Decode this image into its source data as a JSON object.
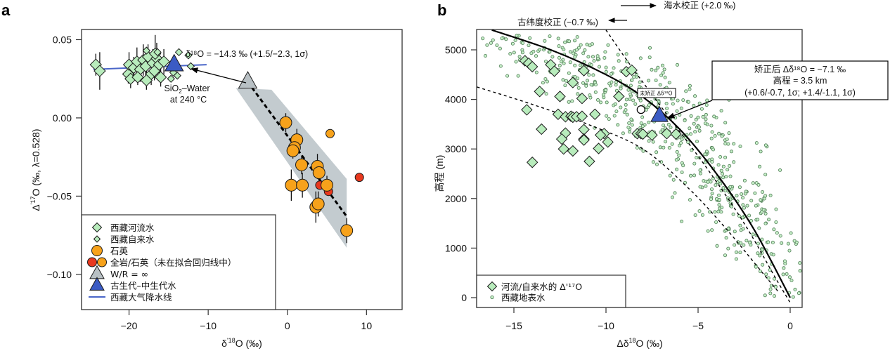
{
  "chart_data": [
    {
      "panel": "a",
      "type": "scatter",
      "xlabel": "δ'¹⁸O (‰)",
      "ylabel": "Δ'¹⁷O (‰, λ=0.528)",
      "xlim": [
        -26,
        14.5
      ],
      "ylim": [
        -0.1225,
        0.0565
      ],
      "xticks": [
        -20,
        -10,
        0,
        10
      ],
      "xtick_labels": [
        "−20",
        "−10",
        "0",
        "10"
      ],
      "yticks": [
        0.05,
        0.0,
        -0.05,
        -0.1
      ],
      "ytick_labels": [
        "0.05",
        "0.00",
        "−0.05",
        "−0.10"
      ],
      "grid": false,
      "legend_position": "bottom-left",
      "annotations": {
        "mean_label": "δ¹⁸O = −14.3 ‰ (+1.5/−2.3, 1σ)",
        "arrow_label_line1": "SiO₂–Water",
        "arrow_label_line2": "at 240 °C"
      },
      "legend": [
        {
          "label": "西藏河流水",
          "marker": "diamond-large",
          "color": "#b8ecbc"
        },
        {
          "label": "西藏自来水",
          "marker": "diamond-small",
          "color": "#b8ecbc"
        },
        {
          "label": "石英",
          "marker": "circle",
          "color": "#f7a21b"
        },
        {
          "label": "全岩/石英（未在拟合回归线中）",
          "marker": "circle-pair",
          "color": "#e8381e"
        },
        {
          "label": "W/R = ∞",
          "marker": "triangle",
          "color": "#b8c0c4"
        },
        {
          "label": "古生代–中生代水",
          "marker": "triangle",
          "color": "#3b5bc4"
        },
        {
          "label": "西藏大气降水线",
          "marker": "line",
          "color": "#4a66c8"
        }
      ],
      "series": [
        {
          "name": "西藏河流水",
          "points": [
            [
              -24.2,
              0.034,
              0.007
            ],
            [
              -23.7,
              0.03,
              0.012
            ],
            [
              -20.1,
              0.028,
              0.006
            ],
            [
              -20.0,
              0.034,
              0.008
            ],
            [
              -19.8,
              0.025,
              0.006
            ],
            [
              -19.4,
              0.032,
              0.007
            ],
            [
              -19.0,
              0.036,
              0.009
            ],
            [
              -18.6,
              0.031,
              0.008
            ],
            [
              -18.2,
              0.037,
              0.01
            ],
            [
              -17.9,
              0.033,
              0.006
            ],
            [
              -17.6,
              0.039,
              0.008
            ],
            [
              -17.2,
              0.028,
              0.007
            ],
            [
              -17.0,
              0.035,
              0.009
            ],
            [
              -16.8,
              0.03,
              0.006
            ],
            [
              -16.5,
              0.038,
              0.01
            ],
            [
              -16.2,
              0.034,
              0.007
            ],
            [
              -16.0,
              0.026,
              0.006
            ],
            [
              -15.6,
              0.036,
              0.008
            ],
            [
              -18.9,
              0.026,
              0.005
            ],
            [
              -17.8,
              0.024,
              0.006
            ],
            [
              -16.7,
              0.041,
              0.012
            ]
          ]
        },
        {
          "name": "西藏自来水",
          "points": [
            [
              -17.8,
              0.043
            ],
            [
              -16.4,
              0.042
            ],
            [
              -13.7,
              0.042
            ],
            [
              -12.5,
              0.04
            ],
            [
              -14.4,
              0.029
            ],
            [
              -13.9,
              0.027
            ],
            [
              -12.2,
              0.033
            ],
            [
              -14.7,
              0.025
            ]
          ]
        },
        {
          "name": "石英",
          "points": [
            [
              -0.2,
              -0.003,
              0.006
            ],
            [
              1.2,
              -0.014,
              0.007
            ],
            [
              0.9,
              -0.019,
              0.006
            ],
            [
              0.7,
              -0.021,
              0.005
            ],
            [
              1.8,
              -0.03,
              0.006
            ],
            [
              3.8,
              -0.031,
              0.008
            ],
            [
              4.0,
              -0.035,
              0.007
            ],
            [
              0.5,
              -0.043,
              0.01
            ],
            [
              1.9,
              -0.043,
              0.008
            ],
            [
              5.0,
              -0.043,
              0.006
            ],
            [
              3.6,
              -0.057,
              0.01
            ],
            [
              3.9,
              -0.055,
              0.008
            ],
            [
              5.4,
              -0.01,
              0.0
            ],
            [
              7.5,
              -0.072,
              0.008
            ]
          ]
        },
        {
          "name": "全岩/石英（未在拟合回归线中）",
          "points": [
            [
              4.1,
              -0.043
            ],
            [
              5.2,
              -0.047
            ],
            [
              9.1,
              -0.038
            ]
          ]
        },
        {
          "name": "W/R = ∞",
          "points": [
            [
              -5.0,
              0.023
            ]
          ]
        },
        {
          "name": "古生代–中生代水",
          "points": [
            [
              -14.3,
              0.034
            ]
          ]
        },
        {
          "name": "西藏大气降水线",
          "line": [
            [
              -24.5,
              0.031
            ],
            [
              -10.2,
              0.034
            ]
          ]
        },
        {
          "name": "regression",
          "line": [
            [
              -5.0,
              0.023
            ],
            [
              7.5,
              -0.063
            ]
          ],
          "band_upper": [
            [
              -2.0,
              0.018
            ],
            [
              7.5,
              -0.039
            ]
          ],
          "band_lower": [
            [
              -6.5,
              0.019
            ],
            [
              7.5,
              -0.083
            ]
          ]
        }
      ]
    },
    {
      "panel": "b",
      "type": "scatter",
      "xlabel": "Δδ¹⁸O (‰)",
      "ylabel": "高程 (m)",
      "xlim": [
        -17,
        0.65
      ],
      "ylim": [
        -200,
        5400
      ],
      "xticks": [
        -15,
        -10,
        -5,
        0
      ],
      "xtick_labels": [
        "−15",
        "−10",
        "−5",
        "0"
      ],
      "yticks": [
        0,
        1000,
        2000,
        3000,
        4000,
        5000
      ],
      "ytick_labels": [
        "0",
        "1000",
        "2000",
        "3000",
        "4000",
        "5000"
      ],
      "grid": false,
      "legend_position": "bottom-left",
      "annotations": {
        "seawater_correction": "海水校正 (+2.0 ‰)",
        "paleolatitude_correction": "古纬度校正 (−0.7 ‰)",
        "uncorrected_label": "未矫正 Δδ¹⁸O",
        "result_line1": "矫正后 Δδ¹⁸O = −7.1 ‰",
        "result_line2": "高程 = 3.5 km",
        "result_line3": "(+0.6/-0.7, 1σ; +1.4/-1.1, 1σ)"
      },
      "legend": [
        {
          "label": "河流/自来水的 Δ'¹⁷O",
          "marker": "diamond-large",
          "color": "#b8ecbc"
        },
        {
          "label": "西藏地表水",
          "marker": "circle-small",
          "color": "#b8ecbc"
        }
      ],
      "series": [
        {
          "name": "河流/自来水的 Δ'¹⁷O",
          "points": [
            [
              -14.4,
              4780
            ],
            [
              -14.2,
              4730
            ],
            [
              -14.0,
              4660
            ],
            [
              -13.0,
              4700
            ],
            [
              -12.8,
              4570
            ],
            [
              -11.8,
              4340
            ],
            [
              -11.2,
              4580
            ],
            [
              -8.9,
              4560
            ],
            [
              -8.6,
              4590
            ],
            [
              -13.6,
              4160
            ],
            [
              -12.5,
              4060
            ],
            [
              -11.3,
              4020
            ],
            [
              -9.3,
              4060
            ],
            [
              -14.3,
              3790
            ],
            [
              -12.6,
              3700
            ],
            [
              -12.2,
              3650
            ],
            [
              -11.9,
              3660
            ],
            [
              -11.8,
              3640
            ],
            [
              -11.6,
              3650
            ],
            [
              -11.3,
              3660
            ],
            [
              -10.6,
              3700
            ],
            [
              -13.5,
              3400
            ],
            [
              -11.2,
              3390
            ],
            [
              -10.1,
              3310
            ],
            [
              -11.2,
              3200
            ],
            [
              -12.2,
              3320
            ],
            [
              -10.3,
              3280
            ],
            [
              -9.9,
              3140
            ],
            [
              -8.3,
              3310
            ],
            [
              -8.1,
              3310
            ],
            [
              -8.0,
              3300
            ],
            [
              -7.5,
              3280
            ],
            [
              -6.7,
              3310
            ],
            [
              -6.2,
              3300
            ],
            [
              -12.3,
              3000
            ],
            [
              -11.8,
              2960
            ],
            [
              -10.4,
              3010
            ],
            [
              -10.9,
              2750
            ],
            [
              -14.0,
              2730
            ],
            [
              -12.4,
              3200
            ],
            [
              -11.2,
              3180
            ]
          ]
        },
        {
          "name": "西藏地表水",
          "generated": "dense cloud of ~600 samples around the fitted curve, from (−16.5, 5300) to (0.5, 0)"
        },
        {
          "name": "fitted_curve",
          "line": [
            [
              -16.2,
              5400
            ],
            [
              -13,
              5000
            ],
            [
              -10,
              4500
            ],
            [
              -8,
              4050
            ],
            [
              -6,
              3400
            ],
            [
              -4,
              2500
            ],
            [
              -2,
              1400
            ],
            [
              0,
              0
            ]
          ]
        },
        {
          "name": "bound_upper",
          "line": [
            [
              -10.0,
              5400
            ],
            [
              -8.5,
              4600
            ],
            [
              -6.5,
              3600
            ],
            [
              -4.5,
              2600
            ],
            [
              -2.5,
              1500
            ],
            [
              -0.8,
              400
            ],
            [
              0,
              -100
            ]
          ]
        },
        {
          "name": "bound_lower",
          "line": [
            [
              -17,
              4250
            ],
            [
              -14,
              3900
            ],
            [
              -11,
              3500
            ],
            [
              -8,
              3000
            ],
            [
              -5.5,
              2200
            ],
            [
              -3.5,
              1400
            ],
            [
              -1.5,
              500
            ],
            [
              -0.6,
              100
            ]
          ]
        },
        {
          "name": "uncorrected",
          "points": [
            [
              -8.1,
              3950
            ]
          ]
        },
        {
          "name": "corrected",
          "points": [
            [
              -7.1,
              3500
            ]
          ]
        }
      ]
    }
  ],
  "labels": {
    "panel_a": "a",
    "panel_b": "b"
  }
}
